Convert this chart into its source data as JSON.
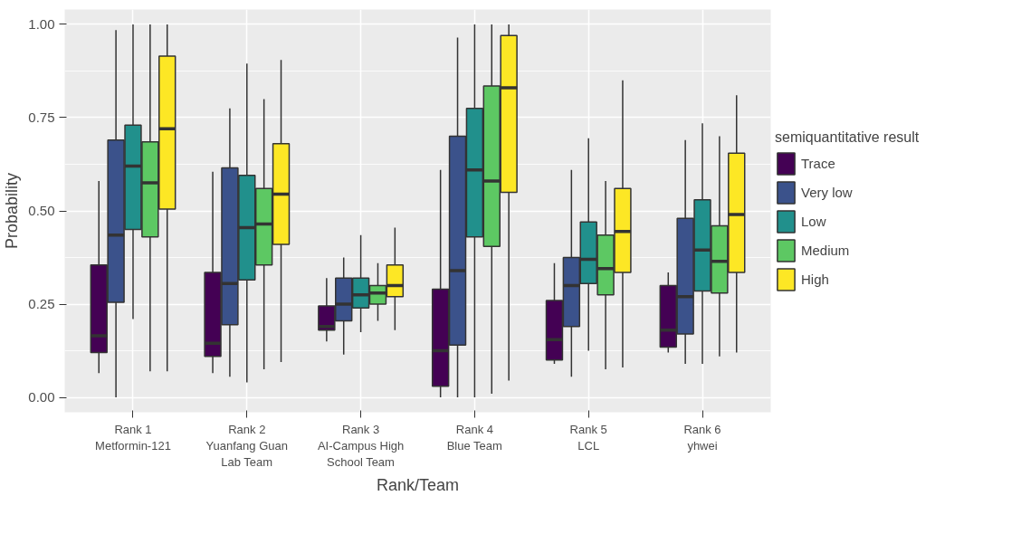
{
  "chart_data": {
    "type": "box",
    "xlabel": "Rank/Team",
    "ylabel": "Probability",
    "legend_title": "semiquantitative result",
    "categories": [
      "Rank 1\nMetformin-121",
      "Rank 2\nYuanfang Guan\nLab Team",
      "Rank 3\nAI-Campus High\nSchool Team",
      "Rank 4\nBlue Team",
      "Rank 5\nLCL",
      "Rank 6\nyhwei"
    ],
    "ylim": [
      -0.04,
      1.04
    ],
    "yticks": [
      {
        "value": 0,
        "label": "0.00"
      },
      {
        "value": 0.25,
        "label": "0.25"
      },
      {
        "value": 0.5,
        "label": "0.50"
      },
      {
        "value": 0.75,
        "label": "0.75"
      },
      {
        "value": 1,
        "label": "1.00"
      }
    ],
    "grid": true,
    "legend": "right",
    "series": [
      {
        "name": "Trace",
        "color": "#440154",
        "boxes": [
          {
            "low": 0.065,
            "q1": 0.12,
            "median": 0.165,
            "q3": 0.355,
            "high": 0.58
          },
          {
            "low": 0.065,
            "q1": 0.11,
            "median": 0.145,
            "q3": 0.335,
            "high": 0.605
          },
          {
            "low": 0.15,
            "q1": 0.18,
            "median": 0.19,
            "q3": 0.245,
            "high": 0.32
          },
          {
            "low": 0.0,
            "q1": 0.03,
            "median": 0.125,
            "q3": 0.29,
            "high": 0.61
          },
          {
            "low": 0.09,
            "q1": 0.1,
            "median": 0.155,
            "q3": 0.26,
            "high": 0.36
          },
          {
            "low": 0.12,
            "q1": 0.135,
            "median": 0.18,
            "q3": 0.3,
            "high": 0.335
          }
        ]
      },
      {
        "name": "Very low",
        "color": "#3b528b",
        "boxes": [
          {
            "low": 0.0,
            "q1": 0.255,
            "median": 0.435,
            "q3": 0.69,
            "high": 0.985
          },
          {
            "low": 0.055,
            "q1": 0.195,
            "median": 0.305,
            "q3": 0.615,
            "high": 0.775
          },
          {
            "low": 0.115,
            "q1": 0.205,
            "median": 0.25,
            "q3": 0.32,
            "high": 0.375
          },
          {
            "low": 0.0,
            "q1": 0.14,
            "median": 0.34,
            "q3": 0.7,
            "high": 0.965
          },
          {
            "low": 0.055,
            "q1": 0.19,
            "median": 0.3,
            "q3": 0.375,
            "high": 0.61
          },
          {
            "low": 0.09,
            "q1": 0.17,
            "median": 0.27,
            "q3": 0.48,
            "high": 0.69
          }
        ]
      },
      {
        "name": "Low",
        "color": "#21908c",
        "boxes": [
          {
            "low": 0.21,
            "q1": 0.45,
            "median": 0.62,
            "q3": 0.73,
            "high": 1.0
          },
          {
            "low": 0.04,
            "q1": 0.315,
            "median": 0.455,
            "q3": 0.595,
            "high": 0.895
          },
          {
            "low": 0.175,
            "q1": 0.24,
            "median": 0.275,
            "q3": 0.32,
            "high": 0.435
          },
          {
            "low": 0.0,
            "q1": 0.43,
            "median": 0.61,
            "q3": 0.775,
            "high": 1.0
          },
          {
            "low": 0.125,
            "q1": 0.305,
            "median": 0.37,
            "q3": 0.47,
            "high": 0.695
          },
          {
            "low": 0.09,
            "q1": 0.285,
            "median": 0.395,
            "q3": 0.53,
            "high": 0.735
          }
        ]
      },
      {
        "name": "Medium",
        "color": "#5dc863",
        "boxes": [
          {
            "low": 0.07,
            "q1": 0.43,
            "median": 0.575,
            "q3": 0.685,
            "high": 1.0
          },
          {
            "low": 0.075,
            "q1": 0.355,
            "median": 0.465,
            "q3": 0.56,
            "high": 0.8
          },
          {
            "low": 0.205,
            "q1": 0.25,
            "median": 0.28,
            "q3": 0.3,
            "high": 0.36
          },
          {
            "low": 0.01,
            "q1": 0.405,
            "median": 0.58,
            "q3": 0.835,
            "high": 1.0
          },
          {
            "low": 0.075,
            "q1": 0.275,
            "median": 0.345,
            "q3": 0.435,
            "high": 0.58
          },
          {
            "low": 0.11,
            "q1": 0.28,
            "median": 0.365,
            "q3": 0.46,
            "high": 0.7
          }
        ]
      },
      {
        "name": "High",
        "color": "#fde725",
        "boxes": [
          {
            "low": 0.07,
            "q1": 0.505,
            "median": 0.72,
            "q3": 0.915,
            "high": 1.0
          },
          {
            "low": 0.095,
            "q1": 0.41,
            "median": 0.545,
            "q3": 0.68,
            "high": 0.905
          },
          {
            "low": 0.18,
            "q1": 0.27,
            "median": 0.3,
            "q3": 0.355,
            "high": 0.455
          },
          {
            "low": 0.045,
            "q1": 0.55,
            "median": 0.83,
            "q3": 0.97,
            "high": 1.0
          },
          {
            "low": 0.08,
            "q1": 0.335,
            "median": 0.445,
            "q3": 0.56,
            "high": 0.85
          },
          {
            "low": 0.12,
            "q1": 0.335,
            "median": 0.49,
            "q3": 0.655,
            "high": 0.81
          }
        ]
      }
    ]
  }
}
